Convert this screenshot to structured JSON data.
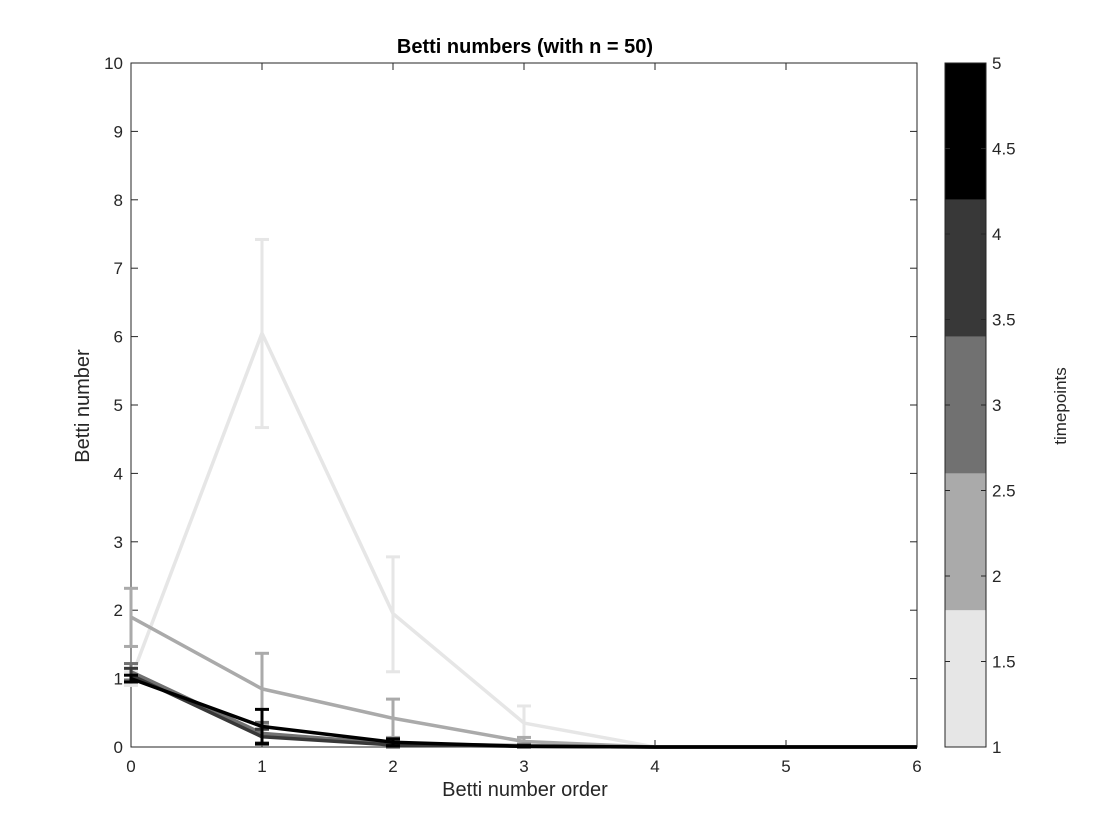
{
  "chart_data": {
    "type": "line",
    "title": "Betti numbers (with n = 50)",
    "xlabel": "Betti number order",
    "ylabel": "Betti number",
    "xlim": [
      0,
      6
    ],
    "ylim": [
      0,
      10
    ],
    "x_ticks": [
      "0",
      "1",
      "2",
      "3",
      "4",
      "5",
      "6"
    ],
    "y_ticks": [
      "0",
      "1",
      "2",
      "3",
      "4",
      "5",
      "6",
      "7",
      "8",
      "9",
      "10"
    ],
    "x": [
      0,
      1,
      2,
      3,
      4,
      5,
      6
    ],
    "grid": false,
    "series": [
      {
        "color": "#e6e6e6",
        "values": [
          1.0,
          6.05,
          1.95,
          0.35,
          0.0,
          0.0,
          0.0
        ],
        "err_low": [
          0.9,
          4.67,
          1.1,
          0.08,
          0.0,
          0.0,
          0.0
        ],
        "err_high": [
          1.1,
          7.42,
          2.78,
          0.6,
          0.0,
          0.0,
          0.0
        ]
      },
      {
        "color": "#aaaaaa",
        "values": [
          1.9,
          0.85,
          0.42,
          0.08,
          0.0,
          0.0,
          0.0
        ],
        "err_low": [
          1.47,
          0.33,
          0.14,
          0.02,
          0.0,
          0.0,
          0.0
        ],
        "err_high": [
          2.32,
          1.37,
          0.7,
          0.14,
          0.0,
          0.0,
          0.0
        ]
      },
      {
        "color": "#717171",
        "values": [
          1.1,
          0.2,
          0.05,
          0.02,
          0.0,
          0.0,
          0.0
        ],
        "err_low": [
          0.98,
          0.06,
          0.0,
          0.0,
          0.0,
          0.0,
          0.0
        ],
        "err_high": [
          1.22,
          0.36,
          0.1,
          0.04,
          0.0,
          0.0,
          0.0
        ]
      },
      {
        "color": "#383838",
        "values": [
          1.05,
          0.15,
          0.03,
          0.01,
          0.0,
          0.0,
          0.0
        ],
        "err_low": [
          0.95,
          0.04,
          0.0,
          0.0,
          0.0,
          0.0,
          0.0
        ],
        "err_high": [
          1.15,
          0.26,
          0.06,
          0.02,
          0.0,
          0.0,
          0.0
        ]
      },
      {
        "color": "#000000",
        "values": [
          1.0,
          0.3,
          0.07,
          0.01,
          0.0,
          0.0,
          0.0
        ],
        "err_low": [
          0.95,
          0.05,
          0.02,
          0.0,
          0.0,
          0.0,
          0.0
        ],
        "err_high": [
          1.05,
          0.55,
          0.12,
          0.02,
          0.0,
          0.0,
          0.0
        ]
      }
    ],
    "colorbar": {
      "label": "timepoints",
      "range": [
        1,
        5
      ],
      "ticks": [
        "1",
        "1.5",
        "2",
        "2.5",
        "3",
        "3.5",
        "4",
        "4.5",
        "5"
      ],
      "bands": [
        {
          "from": 1.0,
          "to": 1.8,
          "color": "#e6e6e6"
        },
        {
          "from": 1.8,
          "to": 2.6,
          "color": "#aaaaaa"
        },
        {
          "from": 2.6,
          "to": 3.4,
          "color": "#717171"
        },
        {
          "from": 3.4,
          "to": 4.2,
          "color": "#383838"
        },
        {
          "from": 4.2,
          "to": 5.0,
          "color": "#000000"
        }
      ]
    }
  }
}
